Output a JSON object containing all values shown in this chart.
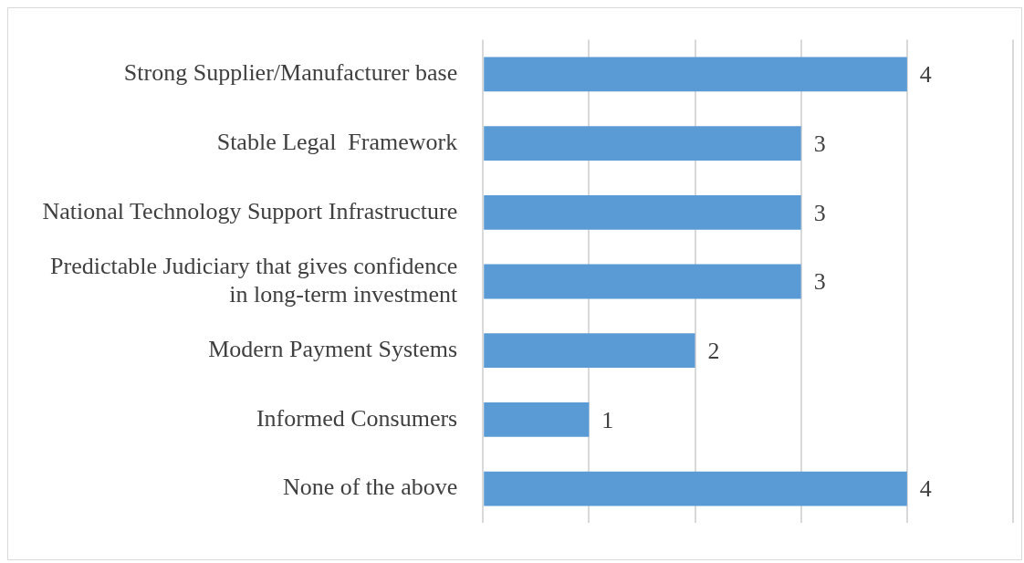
{
  "chart_data": {
    "type": "bar",
    "orientation": "horizontal",
    "categories": [
      "Strong Supplier/Manufacturer base",
      "Stable Legal  Framework",
      "National Technology Support Infrastructure",
      "Predictable Judiciary that gives confidence in long-term investment",
      "Modern Payment Systems",
      "Informed Consumers",
      "None of the above"
    ],
    "values": [
      4,
      3,
      3,
      3,
      2,
      1,
      4
    ],
    "color": "#5b9bd5",
    "xlim": [
      0,
      5
    ],
    "xticks": [
      {
        "value": 0,
        "label": null
      },
      {
        "value": 1,
        "label": null
      },
      {
        "value": 2,
        "label": null
      },
      {
        "value": 3,
        "label": null
      },
      {
        "value": 4,
        "label": null
      },
      {
        "value": 5,
        "label": null
      }
    ],
    "grid": "x",
    "data_labels": true,
    "tick_labels": "y",
    "legend": false
  }
}
